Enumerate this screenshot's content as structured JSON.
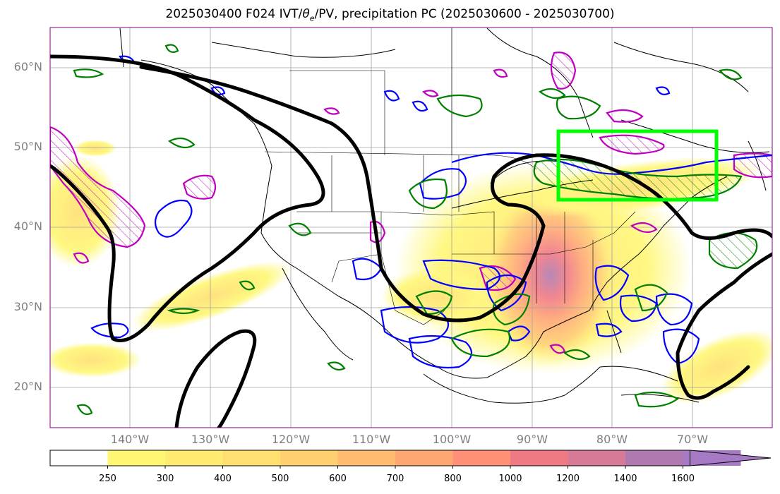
{
  "title": {
    "prefix": "2025030400 F024 IVT/",
    "theta": "θ",
    "theta_sub": "e",
    "suffix": "/PV, precipitation PC (2025030600 - 2025030700)"
  },
  "axes": {
    "lat_labels": [
      "60°N",
      "50°N",
      "40°N",
      "30°N",
      "20°N"
    ],
    "lon_labels": [
      "140°W",
      "130°W",
      "120°W",
      "110°W",
      "100°W",
      "90°W",
      "80°W",
      "70°W"
    ]
  },
  "colorbar": {
    "ticks": [
      "250",
      "300",
      "400",
      "500",
      "600",
      "700",
      "800",
      "1000",
      "1200",
      "1400",
      "1600"
    ],
    "colors": [
      "#ffffff",
      "#fff774",
      "#ffeb72",
      "#ffdf70",
      "#ffcf70",
      "#ffbc70",
      "#ffa772",
      "#ff8f76",
      "#f07a84",
      "#d67a98",
      "#b07ab0",
      "#a67ac4"
    ]
  },
  "legend_colors": {
    "ivt_contour": "#000000",
    "theta_e_contour": "#0000ff",
    "pv_contour": "#008000",
    "magenta_contour": "#c000c0",
    "highlight_box": "#00ff00"
  }
}
